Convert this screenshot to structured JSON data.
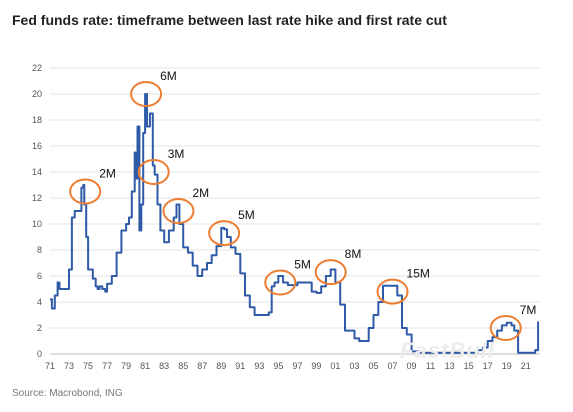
{
  "chart_data": {
    "type": "line",
    "title": "Fed funds rate: timeframe between last rate hike and first rate cut",
    "xlabel": "",
    "ylabel": "",
    "xlim": [
      1971,
      2022.5
    ],
    "ylim": [
      0,
      22
    ],
    "grid": "horizontal",
    "yticks": [
      0,
      2,
      4,
      6,
      8,
      10,
      12,
      14,
      16,
      18,
      20,
      22
    ],
    "xtick_labels": [
      "71",
      "73",
      "75",
      "77",
      "79",
      "81",
      "83",
      "85",
      "87",
      "89",
      "91",
      "93",
      "95",
      "97",
      "99",
      "01",
      "03",
      "05",
      "07",
      "09",
      "11",
      "13",
      "15",
      "17",
      "19",
      "21"
    ],
    "series": [
      {
        "name": "",
        "x": [
          1971.0,
          1971.2,
          1971.5,
          1971.8,
          1972.0,
          1972.5,
          1973.0,
          1973.3,
          1973.6,
          1974.0,
          1974.3,
          1974.5,
          1974.6,
          1974.8,
          1975.0,
          1975.5,
          1975.8,
          1976.0,
          1976.2,
          1976.5,
          1976.8,
          1977.0,
          1977.5,
          1978.0,
          1978.5,
          1979.0,
          1979.3,
          1979.6,
          1979.9,
          1980.0,
          1980.2,
          1980.4,
          1980.6,
          1980.8,
          1981.0,
          1981.2,
          1981.5,
          1981.8,
          1982.0,
          1982.3,
          1982.6,
          1983.0,
          1983.5,
          1984.0,
          1984.3,
          1984.6,
          1985.0,
          1985.5,
          1986.0,
          1986.5,
          1987.0,
          1987.5,
          1988.0,
          1988.5,
          1989.0,
          1989.3,
          1989.6,
          1990.0,
          1990.5,
          1991.0,
          1991.5,
          1992.0,
          1992.5,
          1993.0,
          1994.0,
          1994.3,
          1994.6,
          1995.0,
          1995.5,
          1996.0,
          1997.0,
          1998.0,
          1998.5,
          1999.0,
          1999.5,
          2000.0,
          2000.5,
          2001.0,
          2001.5,
          2002.0,
          2003.0,
          2003.5,
          2004.0,
          2004.5,
          2005.0,
          2005.5,
          2006.0,
          2006.5,
          2007.0,
          2007.5,
          2008.0,
          2008.5,
          2009.0,
          2010.0,
          2012.0,
          2014.0,
          2015.9,
          2016.5,
          2017.0,
          2017.5,
          2018.0,
          2018.5,
          2019.0,
          2019.5,
          2019.8,
          2020.2,
          2020.5,
          2021.0,
          2021.5,
          2022.0,
          2022.3
        ],
        "values": [
          4.2,
          3.5,
          4.5,
          5.5,
          5.0,
          5.0,
          6.5,
          10.5,
          11.0,
          11.0,
          12.8,
          13.0,
          11.5,
          9.0,
          6.5,
          5.8,
          5.2,
          5.0,
          5.2,
          5.0,
          4.8,
          5.4,
          6.0,
          7.8,
          9.5,
          10.0,
          10.5,
          12.5,
          15.5,
          13.5,
          17.5,
          9.5,
          11.5,
          17.0,
          20.0,
          17.5,
          18.5,
          14.5,
          13.8,
          11.5,
          9.5,
          8.6,
          9.5,
          10.5,
          11.5,
          10.0,
          8.2,
          7.8,
          6.8,
          6.0,
          6.5,
          7.0,
          7.6,
          8.3,
          9.7,
          9.6,
          9.0,
          8.2,
          7.7,
          6.2,
          4.5,
          3.6,
          3.0,
          3.0,
          3.2,
          5.2,
          5.5,
          6.0,
          5.5,
          5.3,
          5.5,
          5.5,
          4.8,
          4.7,
          5.2,
          6.0,
          6.5,
          5.5,
          3.8,
          1.8,
          1.2,
          1.0,
          1.0,
          2.0,
          3.0,
          4.0,
          5.25,
          5.25,
          5.25,
          4.5,
          2.0,
          1.5,
          0.2,
          0.1,
          0.1,
          0.1,
          0.3,
          0.5,
          1.0,
          1.3,
          1.8,
          2.2,
          2.4,
          2.2,
          1.8,
          0.1,
          0.1,
          0.1,
          0.1,
          0.3,
          2.5
        ]
      }
    ],
    "annotations": [
      {
        "label": "2M",
        "x": 1974.7,
        "y": 12.5
      },
      {
        "label": "6M",
        "x": 1981.1,
        "y": 20.0
      },
      {
        "label": "3M",
        "x": 1981.9,
        "y": 14.0
      },
      {
        "label": "2M",
        "x": 1984.5,
        "y": 11.0
      },
      {
        "label": "5M",
        "x": 1989.3,
        "y": 9.3
      },
      {
        "label": "5M",
        "x": 1995.2,
        "y": 5.5
      },
      {
        "label": "8M",
        "x": 2000.5,
        "y": 6.3
      },
      {
        "label": "15M",
        "x": 2007.0,
        "y": 4.8
      },
      {
        "label": "7M",
        "x": 2018.9,
        "y": 2.0
      }
    ],
    "colors": {
      "line": "#2f5aa8",
      "highlight": "#ed7d31",
      "grid": "#e3e3e3"
    }
  },
  "source": "Source: Macrobond, ING",
  "watermark": "FastBull"
}
